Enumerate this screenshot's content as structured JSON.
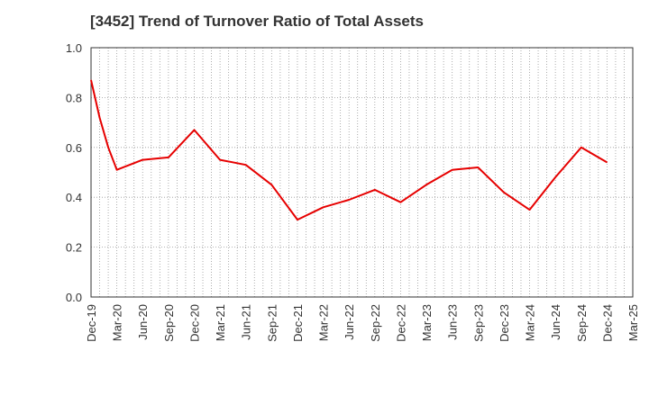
{
  "chart_data": {
    "type": "line",
    "title": "[3452]  Trend of Turnover Ratio of Total Assets",
    "xlabel": "",
    "ylabel": "",
    "ylim": [
      0.0,
      1.0
    ],
    "yticks": [
      "0.0",
      "0.2",
      "0.4",
      "0.6",
      "0.8",
      "1.0"
    ],
    "x_tick_labels": [
      "Dec-19",
      "Mar-20",
      "Jun-20",
      "Sep-20",
      "Dec-20",
      "Mar-21",
      "Jun-21",
      "Sep-21",
      "Dec-21",
      "Mar-22",
      "Jun-22",
      "Sep-22",
      "Dec-22",
      "Mar-23",
      "Jun-23",
      "Sep-23",
      "Dec-23",
      "Mar-24",
      "Jun-24",
      "Sep-24",
      "Dec-24",
      "Mar-25"
    ],
    "grid": true,
    "legend": "none",
    "series": [
      {
        "color": "#e60000",
        "x": [
          "Dec-19",
          "Jan-20",
          "Feb-20",
          "Mar-20",
          "Jun-20",
          "Sep-20",
          "Dec-20",
          "Mar-21",
          "Jun-21",
          "Sep-21",
          "Dec-21",
          "Mar-22",
          "Jun-22",
          "Sep-22",
          "Dec-22",
          "Mar-23",
          "Jun-23",
          "Sep-23",
          "Dec-23",
          "Mar-24",
          "Jun-24",
          "Sep-24",
          "Dec-24"
        ],
        "values": [
          0.87,
          0.72,
          0.6,
          0.51,
          0.55,
          0.56,
          0.67,
          0.55,
          0.53,
          0.45,
          0.31,
          0.36,
          0.39,
          0.43,
          0.38,
          0.45,
          0.51,
          0.52,
          0.42,
          0.35,
          0.48,
          0.6,
          0.54
        ]
      }
    ]
  }
}
